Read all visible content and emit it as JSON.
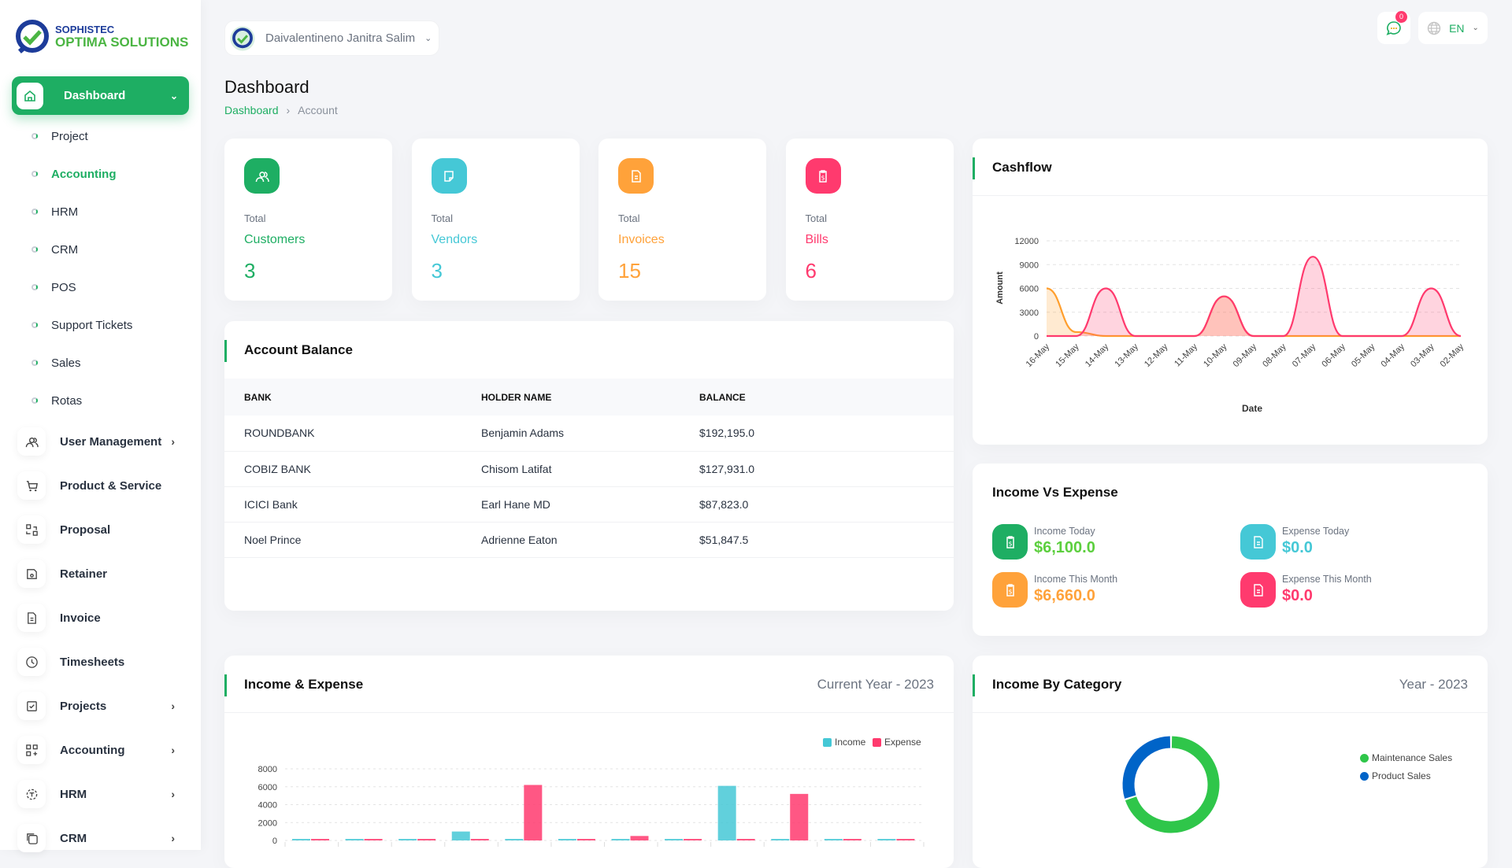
{
  "colors": {
    "accent": "#1eae63",
    "cyan": "#45c8d6",
    "orange": "#ffa23a",
    "pink": "#ff3a6e",
    "blue": "#0064c8",
    "green": "#2fc64a"
  },
  "logo": {
    "line1": "SOPHISTEC",
    "line2": "OPTIMA SOLUTIONS"
  },
  "user": {
    "name": "Daivalentineno Janitra Salim"
  },
  "header": {
    "notifications": "0",
    "language": "EN"
  },
  "sidebar": {
    "active": {
      "label": "Dashboard",
      "icon": "home-icon"
    },
    "submenu": [
      {
        "label": "Project"
      },
      {
        "label": "Accounting",
        "active": true
      },
      {
        "label": "HRM"
      },
      {
        "label": "CRM"
      },
      {
        "label": "POS"
      },
      {
        "label": "Support Tickets"
      },
      {
        "label": "Sales"
      },
      {
        "label": "Rotas"
      }
    ],
    "items": [
      {
        "label": "User Management",
        "icon": "users-icon",
        "chevron": true
      },
      {
        "label": "Product & Service",
        "icon": "cart-icon",
        "chevron": false
      },
      {
        "label": "Proposal",
        "icon": "swap-icon",
        "chevron": false
      },
      {
        "label": "Retainer",
        "icon": "save-icon",
        "chevron": false
      },
      {
        "label": "Invoice",
        "icon": "file-icon",
        "chevron": false
      },
      {
        "label": "Timesheets",
        "icon": "clock-icon",
        "chevron": false
      },
      {
        "label": "Projects",
        "icon": "checkbox-icon",
        "chevron": true
      },
      {
        "label": "Accounting",
        "icon": "apps-icon",
        "chevron": true
      },
      {
        "label": "HRM",
        "icon": "focus-icon",
        "chevron": true
      },
      {
        "label": "CRM",
        "icon": "copy-icon",
        "chevron": true
      }
    ]
  },
  "page": {
    "title": "Dashboard",
    "breadcrumb": [
      "Dashboard",
      "Account"
    ]
  },
  "stats": [
    {
      "total": "Total",
      "name": "Customers",
      "value": "3",
      "color": "#1eae63",
      "icon": "users-icon"
    },
    {
      "total": "Total",
      "name": "Vendors",
      "value": "3",
      "color": "#45c8d6",
      "icon": "note-icon"
    },
    {
      "total": "Total",
      "name": "Invoices",
      "value": "15",
      "color": "#ffa23a",
      "icon": "file-invoice-icon"
    },
    {
      "total": "Total",
      "name": "Bills",
      "value": "6",
      "color": "#ff3a6e",
      "icon": "clipboard-dollar-icon"
    }
  ],
  "account_balance": {
    "title": "Account Balance",
    "columns": [
      "BANK",
      "HOLDER NAME",
      "BALANCE"
    ],
    "rows": [
      [
        "ROUNDBANK",
        "Benjamin Adams",
        "$192,195.0"
      ],
      [
        "COBIZ BANK",
        "Chisom Latifat",
        "$127,931.0"
      ],
      [
        "ICICI Bank",
        "Earl Hane MD",
        "$87,823.0"
      ],
      [
        "Noel Prince",
        "Adrienne Eaton",
        "$51,847.5"
      ]
    ]
  },
  "income_vs_expense": {
    "title": "Income Vs Expense",
    "items": [
      {
        "label": "Income Today",
        "value": "$6,100.0",
        "color": "#1eae63",
        "text_color": "#5ccf3e"
      },
      {
        "label": "Expense Today",
        "value": "$0.0",
        "color": "#45c8d6",
        "text_color": "#45c8d6"
      },
      {
        "label": "Income This Month",
        "value": "$6,660.0",
        "color": "#ffa23a",
        "text_color": "#ffa23a"
      },
      {
        "label": "Expense This Month",
        "value": "$0.0",
        "color": "#ff3a6e",
        "text_color": "#ff3a6e"
      }
    ]
  },
  "income_expense_card": {
    "title": "Income & Expense",
    "period": "Current Year - 2023"
  },
  "income_category_card": {
    "title": "Income By Category",
    "period": "Year - 2023"
  },
  "chart_data": [
    {
      "type": "area",
      "title": "Cashflow",
      "xlabel": "Date",
      "ylabel": "Amount",
      "ylim": [
        0,
        12000
      ],
      "yticks": [
        0,
        3000,
        6000,
        9000,
        12000
      ],
      "grid": true,
      "categories": [
        "16-May",
        "15-May",
        "14-May",
        "13-May",
        "12-May",
        "11-May",
        "10-May",
        "09-May",
        "08-May",
        "07-May",
        "06-May",
        "05-May",
        "04-May",
        "03-May",
        "02-May"
      ],
      "series": [
        {
          "color": "#ff9f2e",
          "values": [
            6000,
            500,
            0,
            0,
            0,
            0,
            5000,
            0,
            0,
            0,
            0,
            0,
            0,
            0,
            0
          ]
        },
        {
          "color": "#ff3a6e",
          "values": [
            0,
            0,
            6000,
            0,
            0,
            0,
            5000,
            0,
            0,
            10000,
            0,
            0,
            0,
            6000,
            0
          ]
        }
      ]
    },
    {
      "type": "bar",
      "ylim": [
        0,
        8000
      ],
      "yticks": [
        0,
        2000,
        4000,
        6000,
        8000
      ],
      "grid": true,
      "legend": "top-right",
      "series": [
        {
          "name": "Income",
          "color": "#45c8d6",
          "values": [
            150,
            0,
            0,
            1000,
            0,
            0,
            150,
            0,
            6100,
            0,
            0,
            0
          ]
        },
        {
          "name": "Expense",
          "color": "#ff3a6e",
          "values": [
            0,
            0,
            0,
            0,
            6200,
            0,
            500,
            0,
            0,
            5200,
            0,
            0
          ]
        }
      ]
    },
    {
      "type": "pie",
      "donut": true,
      "legend": "right",
      "series": [
        {
          "name": "Maintenance Sales",
          "value": 70,
          "color": "#2fc64a"
        },
        {
          "name": "Product Sales",
          "value": 30,
          "color": "#0064c8"
        }
      ]
    }
  ]
}
